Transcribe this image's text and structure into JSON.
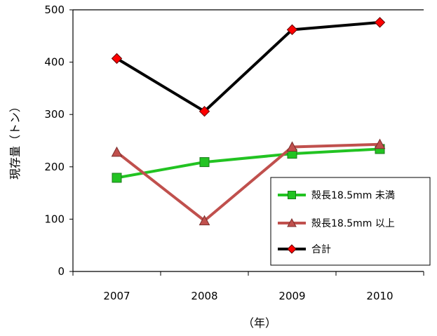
{
  "chart_data": {
    "type": "line",
    "categories": [
      "2007",
      "2008",
      "2009",
      "2010"
    ],
    "xlabel": "（年）",
    "ylabel": "現存量（トン）",
    "ylim": [
      0,
      500
    ],
    "yticks": [
      0,
      100,
      200,
      300,
      400,
      500
    ],
    "grid": false,
    "legend_position": "bottom-right",
    "series": [
      {
        "name": "殻長18.5mm 未満",
        "values": [
          179,
          209,
          225,
          234
        ],
        "color": "#22c322",
        "marker": "square"
      },
      {
        "name": "殻長18.5mm 以上",
        "values": [
          228,
          97,
          238,
          243
        ],
        "color": "#c0504d",
        "marker": "triangle"
      },
      {
        "name": "合計",
        "values": [
          407,
          306,
          462,
          476
        ],
        "color": "#000000",
        "marker": "diamond",
        "marker_color": "#ff0000"
      }
    ]
  }
}
